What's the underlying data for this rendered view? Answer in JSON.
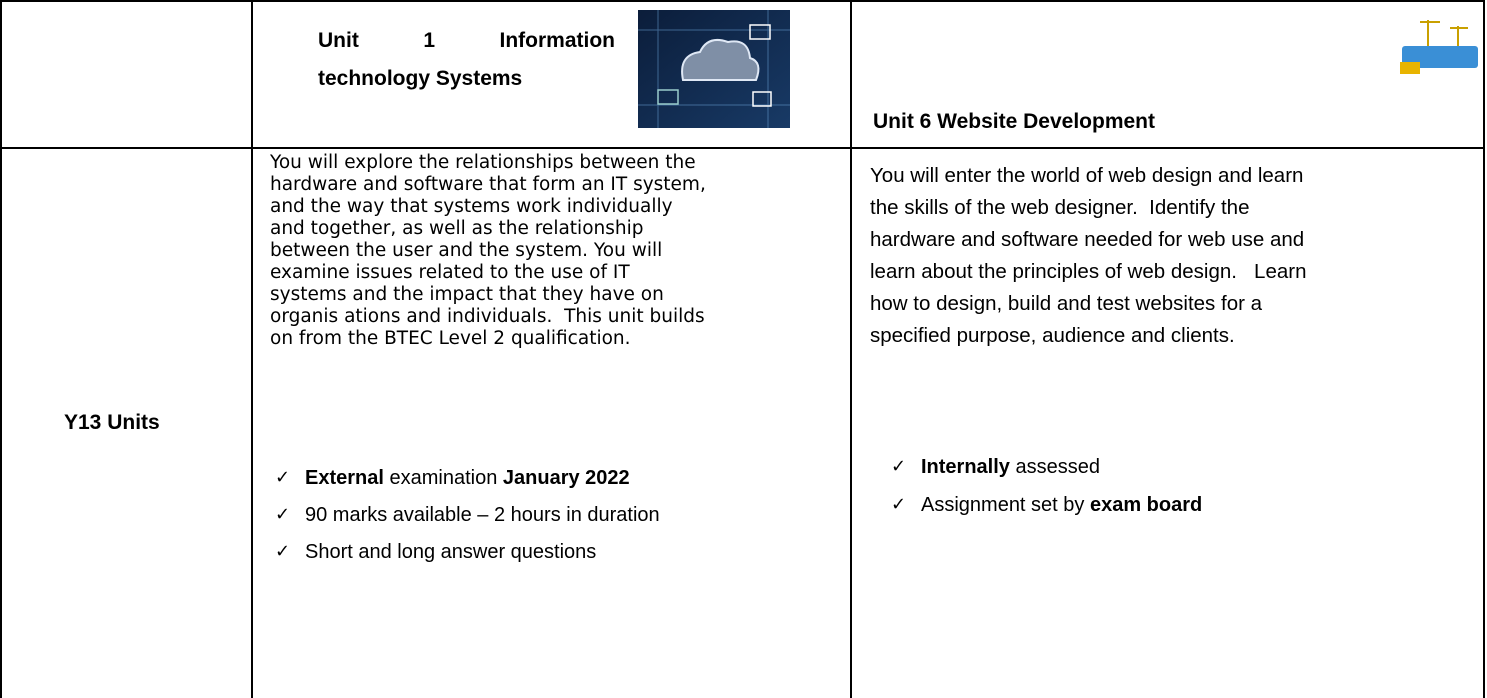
{
  "header": {
    "unit1_title": "Unit 1 Information technology Systems",
    "unit6_title": "Unit 6 Website Development"
  },
  "row_label": "Y13 Units",
  "unit1": {
    "description_lines": [
      "You will explore the relationships between the",
      "hardware and software that form an IT system,",
      "and the way that systems work individually",
      "and together, as well as the relationship",
      "between the user and the system. You will",
      "examine issues related to the use of IT",
      "systems and the impact that they have on",
      "organis ations and individuals.  This unit builds",
      "on from the BTEC Level 2 qualification."
    ],
    "bullets": [
      [
        {
          "text": "External",
          "bold": true
        },
        {
          "text": " examination "
        },
        {
          "text": "January 2022",
          "bold": true
        }
      ],
      [
        {
          "text": "90 marks available – 2 hours in duration"
        }
      ],
      [
        {
          "text": "Short and long answer questions"
        }
      ]
    ]
  },
  "unit6": {
    "description_lines": [
      "You will enter the world of web design and learn",
      "the skills of the web designer.  Identify the",
      "hardware and software needed for web use and",
      "learn about the principles of web design.   Learn",
      "how to design, build and test websites for a",
      "specified purpose, audience and clients."
    ],
    "bullets": [
      [
        {
          "text": "Internally",
          "bold": true
        },
        {
          "text": " assessed"
        }
      ],
      [
        {
          "text": "Assignment set by "
        },
        {
          "text": "exam board",
          "bold": true
        }
      ]
    ]
  }
}
